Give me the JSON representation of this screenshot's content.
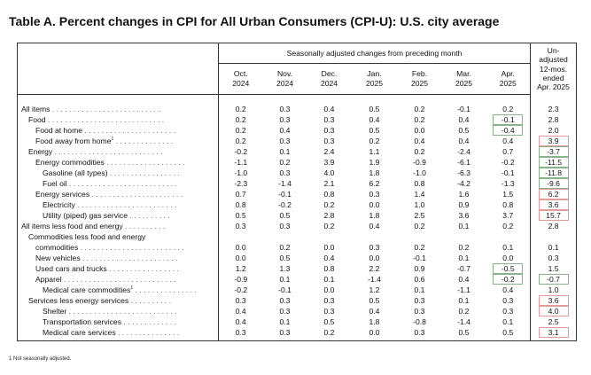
{
  "title": "Table A. Percent changes in CPI for All Urban Consumers (CPI-U): U.S. city average",
  "header": {
    "sa_group": "Seasonally adjusted changes from preceding month",
    "months": [
      {
        "m": "Oct.",
        "y": "2024"
      },
      {
        "m": "Nov.",
        "y": "2024"
      },
      {
        "m": "Dec.",
        "y": "2024"
      },
      {
        "m": "Jan.",
        "y": "2025"
      },
      {
        "m": "Feb.",
        "y": "2025"
      },
      {
        "m": "Mar.",
        "y": "2025"
      },
      {
        "m": "Apr.",
        "y": "2025"
      }
    ],
    "unadjusted": [
      "Un-",
      "adjusted",
      "12-mos.",
      "ended",
      "Apr. 2025"
    ]
  },
  "rows": [
    {
      "label": "All items",
      "leader": " . . . . . . . . . . . . . . . . . . . . . . . . . .",
      "indent": 0,
      "v": [
        "0.2",
        "0.3",
        "0.4",
        "0.5",
        "0.2",
        "-0.1",
        "0.2"
      ],
      "u": "2.3"
    },
    {
      "label": "Food",
      "leader": " . . . . . . . . . . . . . . . . . . . . . . . . . . . .",
      "indent": 1,
      "v": [
        "0.2",
        "0.3",
        "0.3",
        "0.4",
        "0.2",
        "0.4",
        "-0.1"
      ],
      "u": "2.8"
    },
    {
      "label": "Food at home",
      "leader": " . . . . . . . . . . . . . . . . . . . . . .",
      "indent": 2,
      "v": [
        "0.2",
        "0.4",
        "0.3",
        "0.5",
        "0.0",
        "0.5",
        "-0.4"
      ],
      "u": "2.0"
    },
    {
      "label": "Food away from home",
      "sup": "1",
      "leader": " . . . . . . . . . . . . . .",
      "indent": 2,
      "v": [
        "0.2",
        "0.3",
        "0.3",
        "0.2",
        "0.4",
        "0.4",
        "0.4"
      ],
      "u": "3.9"
    },
    {
      "label": "Energy",
      "leader": " . . . . . . . . . . . . . . . . . . . . . . . . . .",
      "indent": 1,
      "v": [
        "-0.2",
        "0.1",
        "2.4",
        "1.1",
        "0.2",
        "-2.4",
        "0.7"
      ],
      "u": "-3.7"
    },
    {
      "label": "Energy commodities",
      "leader": " . . . . . . . . . . . . . . . . . . .",
      "indent": 2,
      "v": [
        "-1.1",
        "0.2",
        "3.9",
        "1.9",
        "-0.9",
        "-6.1",
        "-0.2"
      ],
      "u": "-11.5"
    },
    {
      "label": "Gasoline (all types)",
      "leader": " . . . . . . . . . . . . . . . . .",
      "indent": 3,
      "v": [
        "-1.0",
        "0.3",
        "4.0",
        "1.8",
        "-1.0",
        "-6.3",
        "-0.1"
      ],
      "u": "-11.8"
    },
    {
      "label": "Fuel oil",
      "leader": " . . . . . . . . . . . . . . . . . . . . . . . . . .",
      "indent": 3,
      "v": [
        "-2.3",
        "-1.4",
        "2.1",
        "6.2",
        "0.8",
        "-4.2",
        "-1.3"
      ],
      "u": "-9.6"
    },
    {
      "label": "Energy services",
      "leader": " . . . . . . . . . . . . . . . . . . . . . .",
      "indent": 2,
      "v": [
        "0.7",
        "-0.1",
        "0.8",
        "0.3",
        "1.4",
        "1.6",
        "1.5"
      ],
      "u": "6.2"
    },
    {
      "label": "Electricity",
      "leader": " . . . . . . . . . . . . . . . . . . . . . . . .",
      "indent": 3,
      "v": [
        "0.8",
        "-0.2",
        "0.2",
        "0.0",
        "1.0",
        "0.9",
        "0.8"
      ],
      "u": "3.6"
    },
    {
      "label": "Utility (piped) gas service",
      "leader": " . . . . . . . . . .",
      "indent": 3,
      "v": [
        "0.5",
        "0.5",
        "2.8",
        "1.8",
        "2.5",
        "3.6",
        "3.7"
      ],
      "u": "15.7"
    },
    {
      "label": "All items less food and energy",
      "leader": " . . . . . . . . . .",
      "indent": 0,
      "v": [
        "0.3",
        "0.3",
        "0.2",
        "0.4",
        "0.2",
        "0.1",
        "0.2"
      ],
      "u": "2.8"
    },
    {
      "label": "Commodities less food and energy",
      "leader": "",
      "indent": 1,
      "v": [
        "",
        "",
        "",
        "",
        "",
        "",
        ""
      ],
      "u": ""
    },
    {
      "label": "commodities",
      "leader": " . . . . . . . . . . . . . . . . . . . . . . . . .",
      "indent": 2,
      "v": [
        "0.0",
        "0.2",
        "0.0",
        "0.3",
        "0.2",
        "0.2",
        "0.1"
      ],
      "u": "0.1"
    },
    {
      "label": "New vehicles",
      "leader": " . . . . . . . . . . . . . . . . . . . . . . .",
      "indent": 2,
      "v": [
        "0.0",
        "0.5",
        "0.4",
        "0.0",
        "-0.1",
        "0.1",
        "0.0"
      ],
      "u": "0.3"
    },
    {
      "label": "Used cars and trucks",
      "leader": " . . . . . . . . . . . . . . . . .",
      "indent": 2,
      "v": [
        "1.2",
        "1.3",
        "0.8",
        "2.2",
        "0.9",
        "-0.7",
        "-0.5"
      ],
      "u": "1.5"
    },
    {
      "label": "Apparel",
      "leader": " . . . . . . . . . . . . . . . . . . . . . . . . . . .",
      "indent": 2,
      "v": [
        "-0.9",
        "0.1",
        "0.1",
        "-1.4",
        "0.6",
        "0.4",
        "-0.2"
      ],
      "u": "-0.7"
    },
    {
      "label": "Medical care commodities",
      "sup": "1",
      "leader": " . . . . . . . . . . . . . . .",
      "indent": 3,
      "v": [
        "-0.2",
        "-0.1",
        "0.0",
        "1.2",
        "0.1",
        "-1.1",
        "0.4"
      ],
      "u": "1.0"
    },
    {
      "label": "Services less energy services",
      "leader": " . . . . . . . . . .",
      "indent": 1,
      "v": [
        "0.3",
        "0.3",
        "0.3",
        "0.5",
        "0.3",
        "0.1",
        "0.3"
      ],
      "u": "3.6"
    },
    {
      "label": "Shelter",
      "leader": " . . . . . . . . . . . . . . . . . . . . . . . . . .",
      "indent": 3,
      "v": [
        "0.4",
        "0.3",
        "0.3",
        "0.4",
        "0.3",
        "0.2",
        "0.3"
      ],
      "u": "4.0"
    },
    {
      "label": "Transportation services",
      "leader": " . . . . . . . . . . . . .",
      "indent": 3,
      "v": [
        "0.4",
        "0.1",
        "0.5",
        "1.8",
        "-0.8",
        "-1.4",
        "0.1"
      ],
      "u": "2.5"
    },
    {
      "label": "Medical care services",
      "leader": " . . . . . . . . . . . . . . .",
      "indent": 3,
      "v": [
        "0.3",
        "0.3",
        "0.2",
        "0.0",
        "0.3",
        "0.5",
        "0.5"
      ],
      "u": "3.1"
    }
  ],
  "highlights": {
    "green_apr_rows": [
      1,
      2,
      15,
      16
    ],
    "green_unadj_rows": [
      4,
      5,
      6,
      7,
      16
    ],
    "red_unadj_rows": [
      3,
      8,
      9,
      10,
      18,
      19,
      21
    ],
    "colors": {
      "green": "#8ab28a",
      "red": "#e39a9a",
      "border": "#333333"
    }
  },
  "footnote": {
    "mark": "1",
    "text": "Not seasonally adjusted."
  }
}
